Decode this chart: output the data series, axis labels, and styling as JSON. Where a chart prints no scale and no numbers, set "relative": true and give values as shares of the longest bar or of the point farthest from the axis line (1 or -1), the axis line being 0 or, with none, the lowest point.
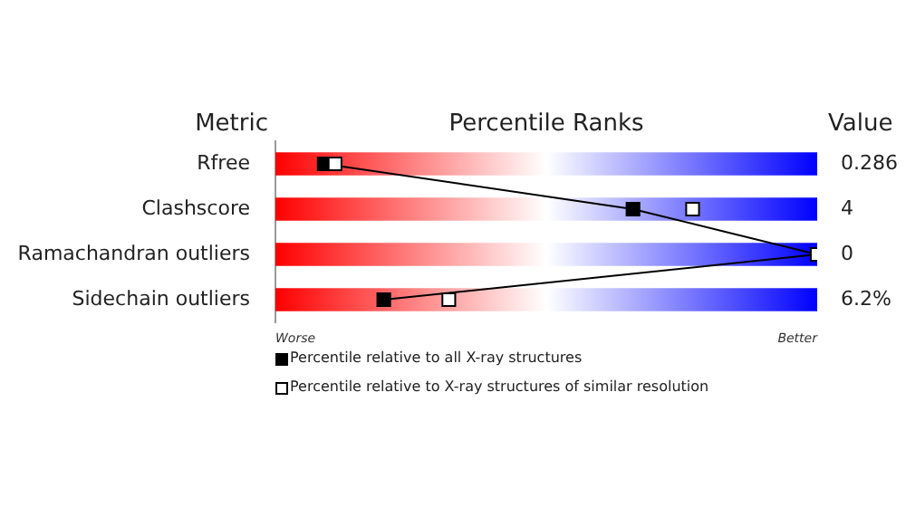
{
  "chart_data": {
    "type": "line",
    "orientation": "horizontal",
    "title": "Percentile Ranks",
    "ylabel": "Metric",
    "y2label": "Value",
    "categories": [
      "Rfree",
      "Clashscore",
      "Ramachandran outliers",
      "Sidechain outliers"
    ],
    "y2_categories": [
      "0.286",
      "4",
      "0",
      "6.2%"
    ],
    "relative": true,
    "annotations": [
      "Worse",
      "Better"
    ],
    "series": [
      {
        "type": "bar",
        "color": "#ff0000",
        "values": [
          1,
          1,
          1,
          1
        ]
      },
      {
        "name": "Percentile relative to all X-ray structures",
        "marker": "square",
        "color": "#000000",
        "values": [
          0.09,
          0.66,
          1.0,
          0.2
        ]
      },
      {
        "name": "Percentile relative to X-ray structures of similar resolution",
        "type": "scatter",
        "marker": "square",
        "color": "#ffffff",
        "values": [
          0.11,
          0.77,
          1.0,
          0.32
        ]
      }
    ],
    "legend": "bottom left"
  }
}
